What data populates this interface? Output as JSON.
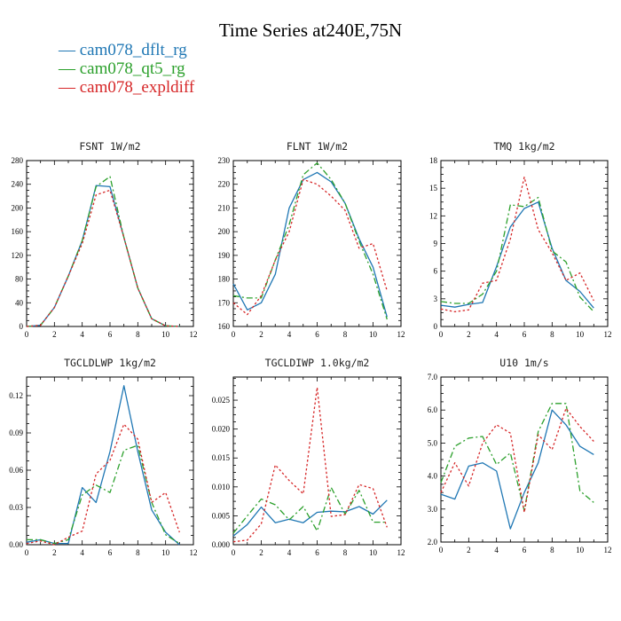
{
  "figure": {
    "title": "Time Series at240E,75N"
  },
  "legend": [
    {
      "name": "cam078_dflt_rg",
      "color": "#1f77b4",
      "dash": "solid"
    },
    {
      "name": "cam078_qt5_rg",
      "color": "#2ca02c",
      "dash": "dashdot"
    },
    {
      "name": "cam078_expldiff",
      "color": "#d62728",
      "dash": "dot"
    }
  ],
  "legend_marker": "—",
  "chart_data": [
    {
      "type": "line",
      "title": "FSNT   1W/m2",
      "xlim": [
        0,
        12
      ],
      "ylim": [
        0,
        280
      ],
      "xticks": [
        0,
        2,
        4,
        6,
        8,
        10,
        12
      ],
      "yticks": [
        0,
        40,
        80,
        120,
        160,
        200,
        240,
        280
      ],
      "yticklabels": [
        "0",
        "40",
        "80",
        "120",
        "160",
        "200",
        "240",
        "280"
      ],
      "x": [
        0,
        1,
        2,
        3,
        4,
        5,
        6,
        7,
        8,
        9,
        10,
        11
      ],
      "series": [
        {
          "name": "cam078_dflt_rg",
          "values": [
            0,
            2,
            32,
            85,
            145,
            238,
            236,
            150,
            65,
            13,
            1,
            0
          ]
        },
        {
          "name": "cam078_qt5_rg",
          "values": [
            0,
            2,
            32,
            85,
            145,
            236,
            253,
            150,
            65,
            13,
            1,
            0
          ]
        },
        {
          "name": "cam078_expldiff",
          "values": [
            0,
            2,
            32,
            85,
            140,
            222,
            230,
            150,
            65,
            13,
            1,
            0
          ]
        }
      ]
    },
    {
      "type": "line",
      "title": "FLNT   1W/m2",
      "xlim": [
        0,
        12
      ],
      "ylim": [
        160,
        230
      ],
      "xticks": [
        0,
        2,
        4,
        6,
        8,
        10,
        12
      ],
      "yticks": [
        160,
        170,
        180,
        190,
        200,
        210,
        220,
        230
      ],
      "yticklabels": [
        "160",
        "170",
        "180",
        "190",
        "200",
        "210",
        "220",
        "230"
      ],
      "x": [
        0,
        1,
        2,
        3,
        4,
        5,
        6,
        7,
        8,
        9,
        10,
        11
      ],
      "series": [
        {
          "name": "cam078_dflt_rg",
          "values": [
            178,
            167,
            170,
            182,
            210,
            222,
            225,
            221,
            212,
            197,
            185,
            164
          ]
        },
        {
          "name": "cam078_qt5_rg",
          "values": [
            173,
            172,
            172,
            188,
            203,
            224,
            229,
            222,
            212,
            196,
            182,
            163
          ]
        },
        {
          "name": "cam078_expldiff",
          "values": [
            170,
            165,
            173,
            188,
            200,
            222,
            220,
            215,
            209,
            193,
            195,
            175
          ]
        }
      ]
    },
    {
      "type": "line",
      "title": "TMQ   1kg/m2",
      "xlim": [
        0,
        12
      ],
      "ylim": [
        0,
        18
      ],
      "xticks": [
        0,
        2,
        4,
        6,
        8,
        10,
        12
      ],
      "yticks": [
        0,
        3,
        6,
        9,
        12,
        15,
        18
      ],
      "yticklabels": [
        "0",
        "3",
        "6",
        "9",
        "12",
        "15",
        "18"
      ],
      "x": [
        0,
        1,
        2,
        3,
        4,
        5,
        6,
        7,
        8,
        9,
        10,
        11
      ],
      "series": [
        {
          "name": "cam078_dflt_rg",
          "values": [
            2.3,
            2.1,
            2.4,
            2.6,
            6.5,
            10.8,
            12.8,
            13.5,
            8.5,
            5.0,
            3.8,
            2.0
          ]
        },
        {
          "name": "cam078_qt5_rg",
          "values": [
            2.7,
            2.5,
            2.5,
            3.5,
            6.0,
            13.2,
            13.0,
            14.0,
            8.2,
            7.0,
            3.2,
            1.6
          ]
        },
        {
          "name": "cam078_expldiff",
          "values": [
            1.9,
            1.6,
            1.8,
            4.7,
            5.0,
            9.5,
            16.2,
            10.5,
            8.0,
            5.0,
            5.8,
            2.8
          ]
        }
      ]
    },
    {
      "type": "line",
      "title": "TGCLDLWP   1kg/m2",
      "xlim": [
        0,
        12
      ],
      "ylim": [
        0,
        0.135
      ],
      "xticks": [
        0,
        2,
        4,
        6,
        8,
        10,
        12
      ],
      "yticks": [
        0,
        0.03,
        0.06,
        0.09,
        0.12
      ],
      "yticklabels": [
        "0.00",
        "0.03",
        "0.06",
        "0.09",
        "0.12"
      ],
      "x": [
        0,
        1,
        2,
        3,
        4,
        5,
        6,
        7,
        8,
        9,
        10,
        11
      ],
      "series": [
        {
          "name": "cam078_dflt_rg",
          "values": [
            0.002,
            0.004,
            0.001,
            0.001,
            0.046,
            0.034,
            0.075,
            0.128,
            0.075,
            0.028,
            0.01,
            0.0
          ]
        },
        {
          "name": "cam078_qt5_rg",
          "values": [
            0.004,
            0.004,
            0.001,
            0.004,
            0.04,
            0.048,
            0.042,
            0.076,
            0.08,
            0.034,
            0.008,
            0.001
          ]
        },
        {
          "name": "cam078_expldiff",
          "values": [
            0.001,
            0.003,
            0.0,
            0.006,
            0.011,
            0.057,
            0.068,
            0.097,
            0.085,
            0.034,
            0.042,
            0.01
          ]
        }
      ]
    },
    {
      "type": "line",
      "title": "TGCLDIWP   1.0kg/m2",
      "xlim": [
        0,
        12
      ],
      "ylim": [
        0,
        0.029
      ],
      "xticks": [
        0,
        2,
        4,
        6,
        8,
        10,
        12
      ],
      "yticks": [
        0,
        0.005,
        0.01,
        0.015,
        0.02,
        0.025
      ],
      "yticklabels": [
        "0.000",
        "0.005",
        "0.010",
        "0.015",
        "0.020",
        "0.025"
      ],
      "x": [
        0,
        1,
        2,
        3,
        4,
        5,
        6,
        7,
        8,
        9,
        10,
        11
      ],
      "series": [
        {
          "name": "cam078_dflt_rg",
          "values": [
            0.0015,
            0.0035,
            0.0065,
            0.0038,
            0.0044,
            0.0038,
            0.0056,
            0.0058,
            0.0057,
            0.0066,
            0.0053,
            0.0077
          ]
        },
        {
          "name": "cam078_qt5_rg",
          "values": [
            0.002,
            0.005,
            0.0079,
            0.0069,
            0.0043,
            0.0066,
            0.0024,
            0.0099,
            0.0053,
            0.0094,
            0.0039,
            0.0039
          ]
        },
        {
          "name": "cam078_expldiff",
          "values": [
            0.0005,
            0.0008,
            0.0036,
            0.0138,
            0.0111,
            0.0088,
            0.0272,
            0.0049,
            0.0052,
            0.0104,
            0.0097,
            0.003
          ]
        }
      ]
    },
    {
      "type": "line",
      "title": "U10   1m/s",
      "xlim": [
        0,
        12
      ],
      "ylim": [
        2.0,
        7.0
      ],
      "xticks": [
        0,
        2,
        4,
        6,
        8,
        10,
        12
      ],
      "yticks": [
        2,
        3,
        4,
        5,
        6,
        7
      ],
      "yticklabels": [
        "2.0",
        "3.0",
        "4.0",
        "5.0",
        "6.0",
        "7.0"
      ],
      "x": [
        0,
        1,
        2,
        3,
        4,
        5,
        6,
        7,
        8,
        9,
        10,
        11
      ],
      "series": [
        {
          "name": "cam078_dflt_rg",
          "values": [
            3.45,
            3.3,
            4.3,
            4.4,
            4.15,
            2.4,
            3.5,
            4.4,
            6.0,
            5.55,
            4.9,
            4.65
          ]
        },
        {
          "name": "cam078_qt5_rg",
          "values": [
            3.8,
            4.9,
            5.15,
            5.2,
            4.35,
            4.7,
            2.95,
            5.35,
            6.2,
            6.2,
            3.55,
            3.2
          ]
        },
        {
          "name": "cam078_expldiff",
          "values": [
            3.5,
            4.4,
            3.7,
            5.0,
            5.55,
            5.3,
            2.9,
            5.25,
            4.8,
            6.05,
            5.5,
            5.05
          ]
        }
      ]
    }
  ]
}
